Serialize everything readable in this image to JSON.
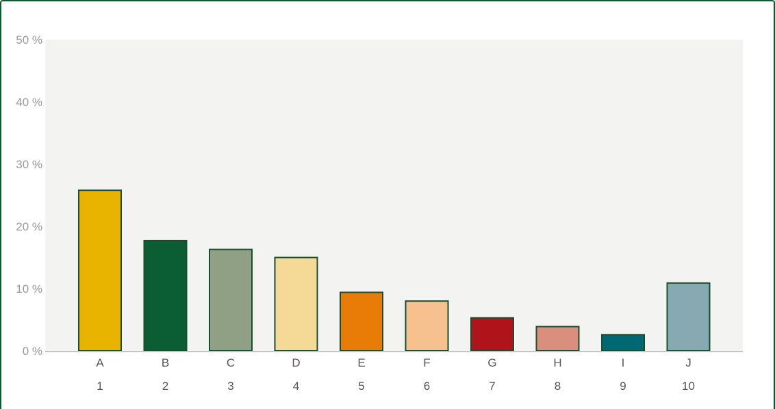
{
  "chart_data": {
    "type": "bar",
    "title": "",
    "xlabel": "",
    "ylabel": "",
    "categories": [
      "A",
      "B",
      "C",
      "D",
      "E",
      "F",
      "G",
      "H",
      "I",
      "J"
    ],
    "category_numbers": [
      "1",
      "2",
      "3",
      "4",
      "5",
      "6",
      "7",
      "8",
      "9",
      "10"
    ],
    "values": [
      25.8,
      17.7,
      16.3,
      15.0,
      9.4,
      8.0,
      5.3,
      3.9,
      2.6,
      10.9
    ],
    "ylim": [
      0,
      50
    ],
    "yticks": [
      0,
      10,
      20,
      30,
      40,
      50
    ],
    "ytick_labels": [
      "0 %",
      "10 %",
      "20 %",
      "30 %",
      "40 %",
      "50 %"
    ],
    "grid": false,
    "colors": {
      "bars": [
        "#e8b400",
        "#0b5e34",
        "#8fa085",
        "#f5d996",
        "#e87c07",
        "#f7c18f",
        "#b0141b",
        "#d98e7e",
        "#006873",
        "#87a9b2"
      ],
      "bar_outline": "#1a4d2e",
      "plot_background": "#f3f3f2",
      "frame": "#0f5a32",
      "axis": "#c4c4c4"
    }
  }
}
